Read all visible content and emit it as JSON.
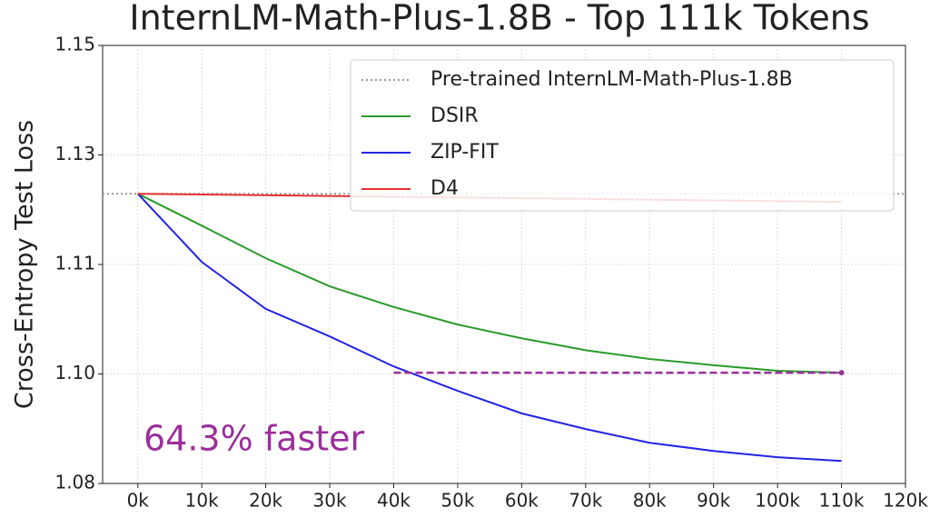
{
  "chart_data": {
    "type": "line",
    "title": "InternLM-Math-Plus-1.8B - Top 111k Tokens",
    "y_label": "Cross-Entropy Test Loss",
    "annotation": "64.3% faster",
    "baseline": {
      "name": "Pre-trained InternLM-Math-Plus-1.8B",
      "value": 1.1263,
      "color": "#999999"
    },
    "speedup_line": {
      "x": [
        40000,
        110000
      ],
      "y": [
        1.0977,
        1.0977
      ],
      "color": "#9b2f9b"
    },
    "series": [
      {
        "name": "DSIR",
        "color": "#2a9a2a",
        "x": [
          0,
          10000,
          20000,
          30000,
          40000,
          50000,
          60000,
          70000,
          80000,
          90000,
          100000,
          110000
        ],
        "values": [
          1.1263,
          1.1212,
          1.116,
          1.1115,
          1.1082,
          1.1054,
          1.1032,
          1.1013,
          1.0999,
          1.0989,
          1.098,
          1.0977
        ]
      },
      {
        "name": "ZIP-FIT",
        "color": "#2323e6",
        "x": [
          0,
          10000,
          20000,
          30000,
          40000,
          50000,
          60000,
          70000,
          80000,
          90000,
          100000,
          110000
        ],
        "values": [
          1.1263,
          1.1154,
          1.1079,
          1.1035,
          1.0987,
          1.0948,
          1.0912,
          1.0887,
          1.0865,
          1.0852,
          1.0842,
          1.0836
        ]
      },
      {
        "name": "D4",
        "color": "#e63232",
        "x": [
          0,
          110000
        ],
        "values": [
          1.1263,
          1.125
        ]
      }
    ],
    "xlim": [
      -5500,
      120000
    ],
    "xticks": [
      {
        "value": 0,
        "label": "0k"
      },
      {
        "value": 10000,
        "label": "10k"
      },
      {
        "value": 20000,
        "label": "20k"
      },
      {
        "value": 30000,
        "label": "30k"
      },
      {
        "value": 40000,
        "label": "40k"
      },
      {
        "value": 50000,
        "label": "50k"
      },
      {
        "value": 60000,
        "label": "60k"
      },
      {
        "value": 70000,
        "label": "70k"
      },
      {
        "value": 80000,
        "label": "80k"
      },
      {
        "value": 90000,
        "label": "90k"
      },
      {
        "value": 100000,
        "label": "100k"
      },
      {
        "value": 110000,
        "label": "110k"
      },
      {
        "value": 120000,
        "label": "120k"
      }
    ],
    "ylim": [
      1.08,
      1.15
    ],
    "yticks": [
      {
        "value": 1.08,
        "label": "1.08"
      },
      {
        "value": 1.0975,
        "label": "1.10"
      },
      {
        "value": 1.115,
        "label": "1.11"
      },
      {
        "value": 1.1325,
        "label": "1.13"
      },
      {
        "value": 1.15,
        "label": "1.15"
      }
    ],
    "grid": true,
    "legend": "upper right"
  }
}
